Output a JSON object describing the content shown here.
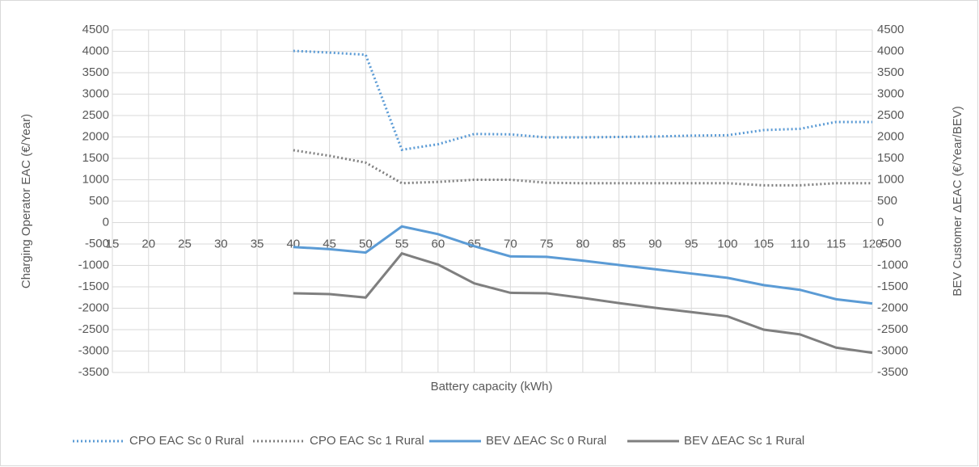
{
  "chart_data": {
    "type": "line",
    "x_label": "Battery capacity (kWh)",
    "y_label": "Charging Operator EAC (€/Year)",
    "y2_label": "BEV Customer ΔEAC (€/Year/BEV)",
    "x": [
      40,
      45,
      50,
      55,
      60,
      65,
      70,
      75,
      80,
      85,
      90,
      95,
      100,
      105,
      110,
      115,
      120
    ],
    "xlim": [
      15,
      120
    ],
    "xticks": [
      15,
      20,
      25,
      30,
      35,
      40,
      45,
      50,
      55,
      60,
      65,
      70,
      75,
      80,
      85,
      90,
      95,
      100,
      105,
      110,
      115,
      120
    ],
    "ylim": [
      -3500,
      4500
    ],
    "yticks": [
      -3500,
      -3000,
      -2500,
      -2000,
      -1500,
      -1000,
      -500,
      0,
      500,
      1000,
      1500,
      2000,
      2500,
      3000,
      3500,
      4000,
      4500
    ],
    "y2lim": [
      -3500,
      4500
    ],
    "y2ticks": [
      -3500,
      -3000,
      -2500,
      -2000,
      -1500,
      -1000,
      -500,
      0,
      500,
      1000,
      1500,
      2000,
      2500,
      3000,
      3500,
      4000,
      4500
    ],
    "grid": true,
    "legend": "bottom",
    "series": [
      {
        "name": "CPO EAC Sc 0 Rural",
        "color": "#5b9bd5",
        "style": "dotted",
        "values": [
          4010,
          3970,
          3920,
          1700,
          1830,
          2070,
          2060,
          1990,
          1990,
          2000,
          2010,
          2030,
          2040,
          2160,
          2190,
          2350,
          2350
        ]
      },
      {
        "name": "CPO EAC Sc 1 Rural",
        "color": "#7f7f7f",
        "style": "dotted",
        "values": [
          1690,
          1560,
          1400,
          920,
          950,
          1000,
          1000,
          930,
          920,
          920,
          920,
          920,
          920,
          870,
          870,
          920,
          920
        ]
      },
      {
        "name": "BEV ΔEAC Sc 0 Rural",
        "color": "#5b9bd5",
        "style": "solid",
        "axis": "y2",
        "values": [
          -570,
          -620,
          -700,
          -90,
          -270,
          -550,
          -790,
          -800,
          -890,
          -990,
          -1090,
          -1190,
          -1290,
          -1460,
          -1570,
          -1790,
          -1890
        ]
      },
      {
        "name": "BEV ΔEAC Sc 1 Rural",
        "color": "#7f7f7f",
        "style": "solid",
        "axis": "y2",
        "values": [
          -1650,
          -1670,
          -1750,
          -720,
          -980,
          -1420,
          -1640,
          -1650,
          -1760,
          -1880,
          -1990,
          -2090,
          -2190,
          -2500,
          -2610,
          -2920,
          -3040
        ]
      }
    ]
  }
}
